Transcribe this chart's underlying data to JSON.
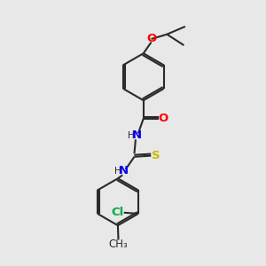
{
  "background_color": "#e8e8e8",
  "bond_color": "#2a2a2a",
  "bond_width": 1.5,
  "atom_colors": {
    "O": "#ff0000",
    "N": "#0000ee",
    "S": "#ccbb00",
    "Cl": "#00aa44",
    "C": "#2a2a2a",
    "H": "#2a2a2a"
  },
  "font_size": 9.5
}
